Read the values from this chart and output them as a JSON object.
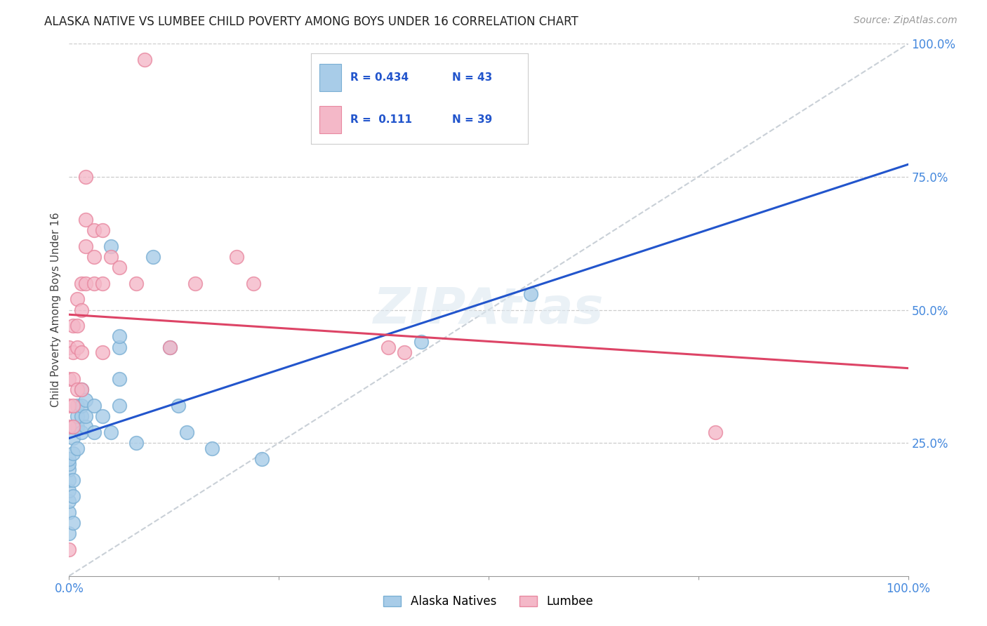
{
  "title": "ALASKA NATIVE VS LUMBEE CHILD POVERTY AMONG BOYS UNDER 16 CORRELATION CHART",
  "source": "Source: ZipAtlas.com",
  "ylabel": "Child Poverty Among Boys Under 16",
  "alaska_R": 0.434,
  "alaska_N": 43,
  "lumbee_R": 0.111,
  "lumbee_N": 39,
  "alaska_color": "#a8cce8",
  "lumbee_color": "#f4b8c8",
  "alaska_edge": "#7aafd4",
  "lumbee_edge": "#e888a0",
  "trend_alaska_color": "#2255cc",
  "trend_lumbee_color": "#dd4466",
  "diagonal_color": "#c0c8d0",
  "background": "#ffffff",
  "alaska_points": [
    [
      0.0,
      0.08
    ],
    [
      0.0,
      0.12
    ],
    [
      0.0,
      0.14
    ],
    [
      0.0,
      0.16
    ],
    [
      0.0,
      0.18
    ],
    [
      0.0,
      0.2
    ],
    [
      0.0,
      0.21
    ],
    [
      0.0,
      0.22
    ],
    [
      0.005,
      0.1
    ],
    [
      0.005,
      0.15
    ],
    [
      0.005,
      0.18
    ],
    [
      0.005,
      0.23
    ],
    [
      0.005,
      0.26
    ],
    [
      0.005,
      0.28
    ],
    [
      0.01,
      0.24
    ],
    [
      0.01,
      0.28
    ],
    [
      0.01,
      0.3
    ],
    [
      0.01,
      0.32
    ],
    [
      0.015,
      0.27
    ],
    [
      0.015,
      0.3
    ],
    [
      0.015,
      0.32
    ],
    [
      0.015,
      0.35
    ],
    [
      0.02,
      0.28
    ],
    [
      0.02,
      0.3
    ],
    [
      0.02,
      0.33
    ],
    [
      0.03,
      0.27
    ],
    [
      0.03,
      0.32
    ],
    [
      0.04,
      0.3
    ],
    [
      0.05,
      0.27
    ],
    [
      0.05,
      0.62
    ],
    [
      0.06,
      0.32
    ],
    [
      0.06,
      0.37
    ],
    [
      0.06,
      0.43
    ],
    [
      0.06,
      0.45
    ],
    [
      0.08,
      0.25
    ],
    [
      0.1,
      0.6
    ],
    [
      0.12,
      0.43
    ],
    [
      0.13,
      0.32
    ],
    [
      0.14,
      0.27
    ],
    [
      0.17,
      0.24
    ],
    [
      0.23,
      0.22
    ],
    [
      0.42,
      0.44
    ],
    [
      0.55,
      0.53
    ]
  ],
  "lumbee_points": [
    [
      0.0,
      0.05
    ],
    [
      0.0,
      0.28
    ],
    [
      0.0,
      0.32
    ],
    [
      0.0,
      0.37
    ],
    [
      0.0,
      0.43
    ],
    [
      0.005,
      0.28
    ],
    [
      0.005,
      0.32
    ],
    [
      0.005,
      0.37
    ],
    [
      0.005,
      0.42
    ],
    [
      0.005,
      0.47
    ],
    [
      0.01,
      0.35
    ],
    [
      0.01,
      0.43
    ],
    [
      0.01,
      0.47
    ],
    [
      0.01,
      0.52
    ],
    [
      0.015,
      0.35
    ],
    [
      0.015,
      0.42
    ],
    [
      0.015,
      0.5
    ],
    [
      0.015,
      0.55
    ],
    [
      0.02,
      0.55
    ],
    [
      0.02,
      0.62
    ],
    [
      0.02,
      0.67
    ],
    [
      0.02,
      0.75
    ],
    [
      0.03,
      0.55
    ],
    [
      0.03,
      0.6
    ],
    [
      0.03,
      0.65
    ],
    [
      0.04,
      0.42
    ],
    [
      0.04,
      0.55
    ],
    [
      0.04,
      0.65
    ],
    [
      0.05,
      0.6
    ],
    [
      0.06,
      0.58
    ],
    [
      0.08,
      0.55
    ],
    [
      0.09,
      0.97
    ],
    [
      0.12,
      0.43
    ],
    [
      0.15,
      0.55
    ],
    [
      0.2,
      0.6
    ],
    [
      0.22,
      0.55
    ],
    [
      0.38,
      0.43
    ],
    [
      0.4,
      0.42
    ],
    [
      0.77,
      0.27
    ]
  ]
}
